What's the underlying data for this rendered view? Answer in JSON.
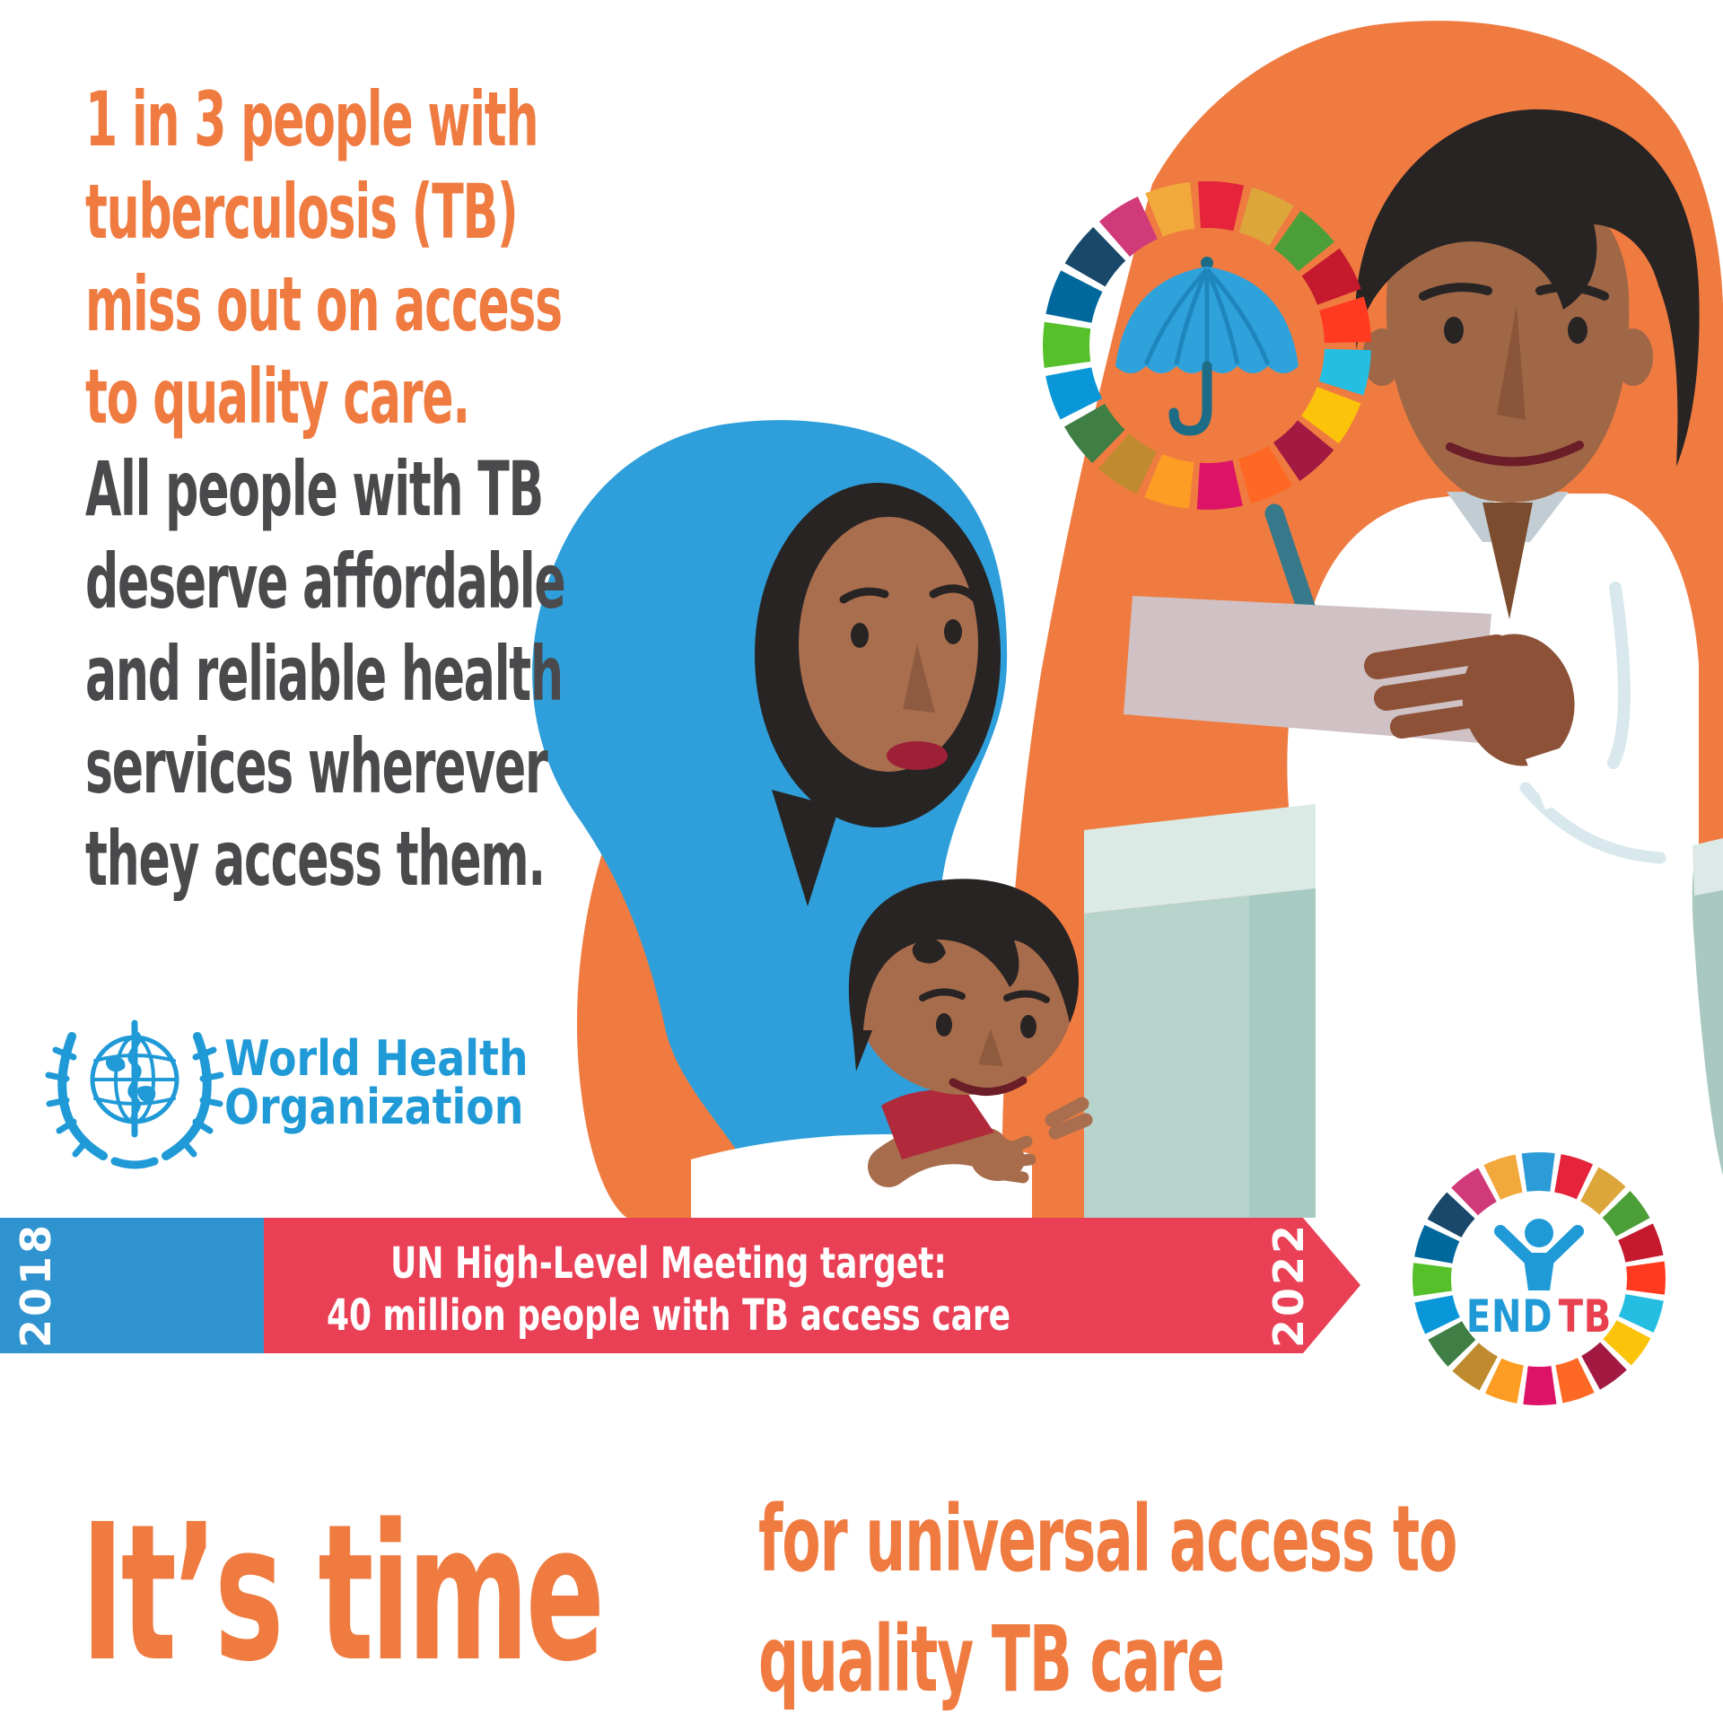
{
  "headline": {
    "orange_lines": [
      "1 in 3 people with",
      "tuberculosis (TB)",
      "miss out on access",
      "to quality care."
    ],
    "gray_lines": [
      "All people with TB",
      "deserve affordable",
      "and reliable health",
      "services wherever",
      "they access them."
    ]
  },
  "who_logo": {
    "name_line1": "World Health",
    "name_line2": "Organization"
  },
  "timeline_banner": {
    "start_year": "2018",
    "message_line1": "UN High-Level Meeting target:",
    "message_line2": "40 million people with TB access care",
    "end_year": "2022"
  },
  "end_tb_logo": {
    "word_end": "END",
    "word_tb": "TB"
  },
  "footer": {
    "lead": "It’s time",
    "line1": "for universal access to",
    "line2": "quality TB care"
  },
  "icons": {
    "umbrella": "umbrella-icon",
    "sdg_wheel": "sdg-color-wheel",
    "who_emblem": "who-emblem-icon",
    "endtb_person": "person-arms-raised-icon",
    "timeline_arrow": "arrow-right-banner"
  },
  "colors": {
    "orange": "#EF7B41",
    "dark_gray": "#4A4A4C",
    "who_blue": "#1F9AD7",
    "scarf_blue": "#2E9FDA",
    "banner_blue": "#2F93CF",
    "banner_red": "#E94056",
    "endtb_red": "#E8404F",
    "desk_top": "#DCEAE5",
    "desk_front": "#B7D4CC",
    "desk_shade": "#A7CBC2",
    "skin_man": "#A06746",
    "skin_woman": "#A86E4E",
    "skin_child": "#A76C4B",
    "hand_dark": "#8C5137",
    "hair": "#282424",
    "paper": "#CFC1C4",
    "pen_teal": "#37798B",
    "umbrella_blue": "#2FA2DC",
    "umbrella_pole": "#1D6C85",
    "child_shirt_red": "#B02A3C",
    "white": "#FFFFFF"
  },
  "sdg_palette": [
    "#E5243B",
    "#DDA63A",
    "#4C9F38",
    "#C5192D",
    "#FF3A21",
    "#26BDE2",
    "#FCC30B",
    "#A21942",
    "#FD6925",
    "#DD1367",
    "#FD9D24",
    "#BF8B2E",
    "#3F7E44",
    "#0A97D9",
    "#56C02B",
    "#00689D",
    "#19486A",
    "#D13A79",
    "#F2A93B",
    "#2D9BD8"
  ]
}
